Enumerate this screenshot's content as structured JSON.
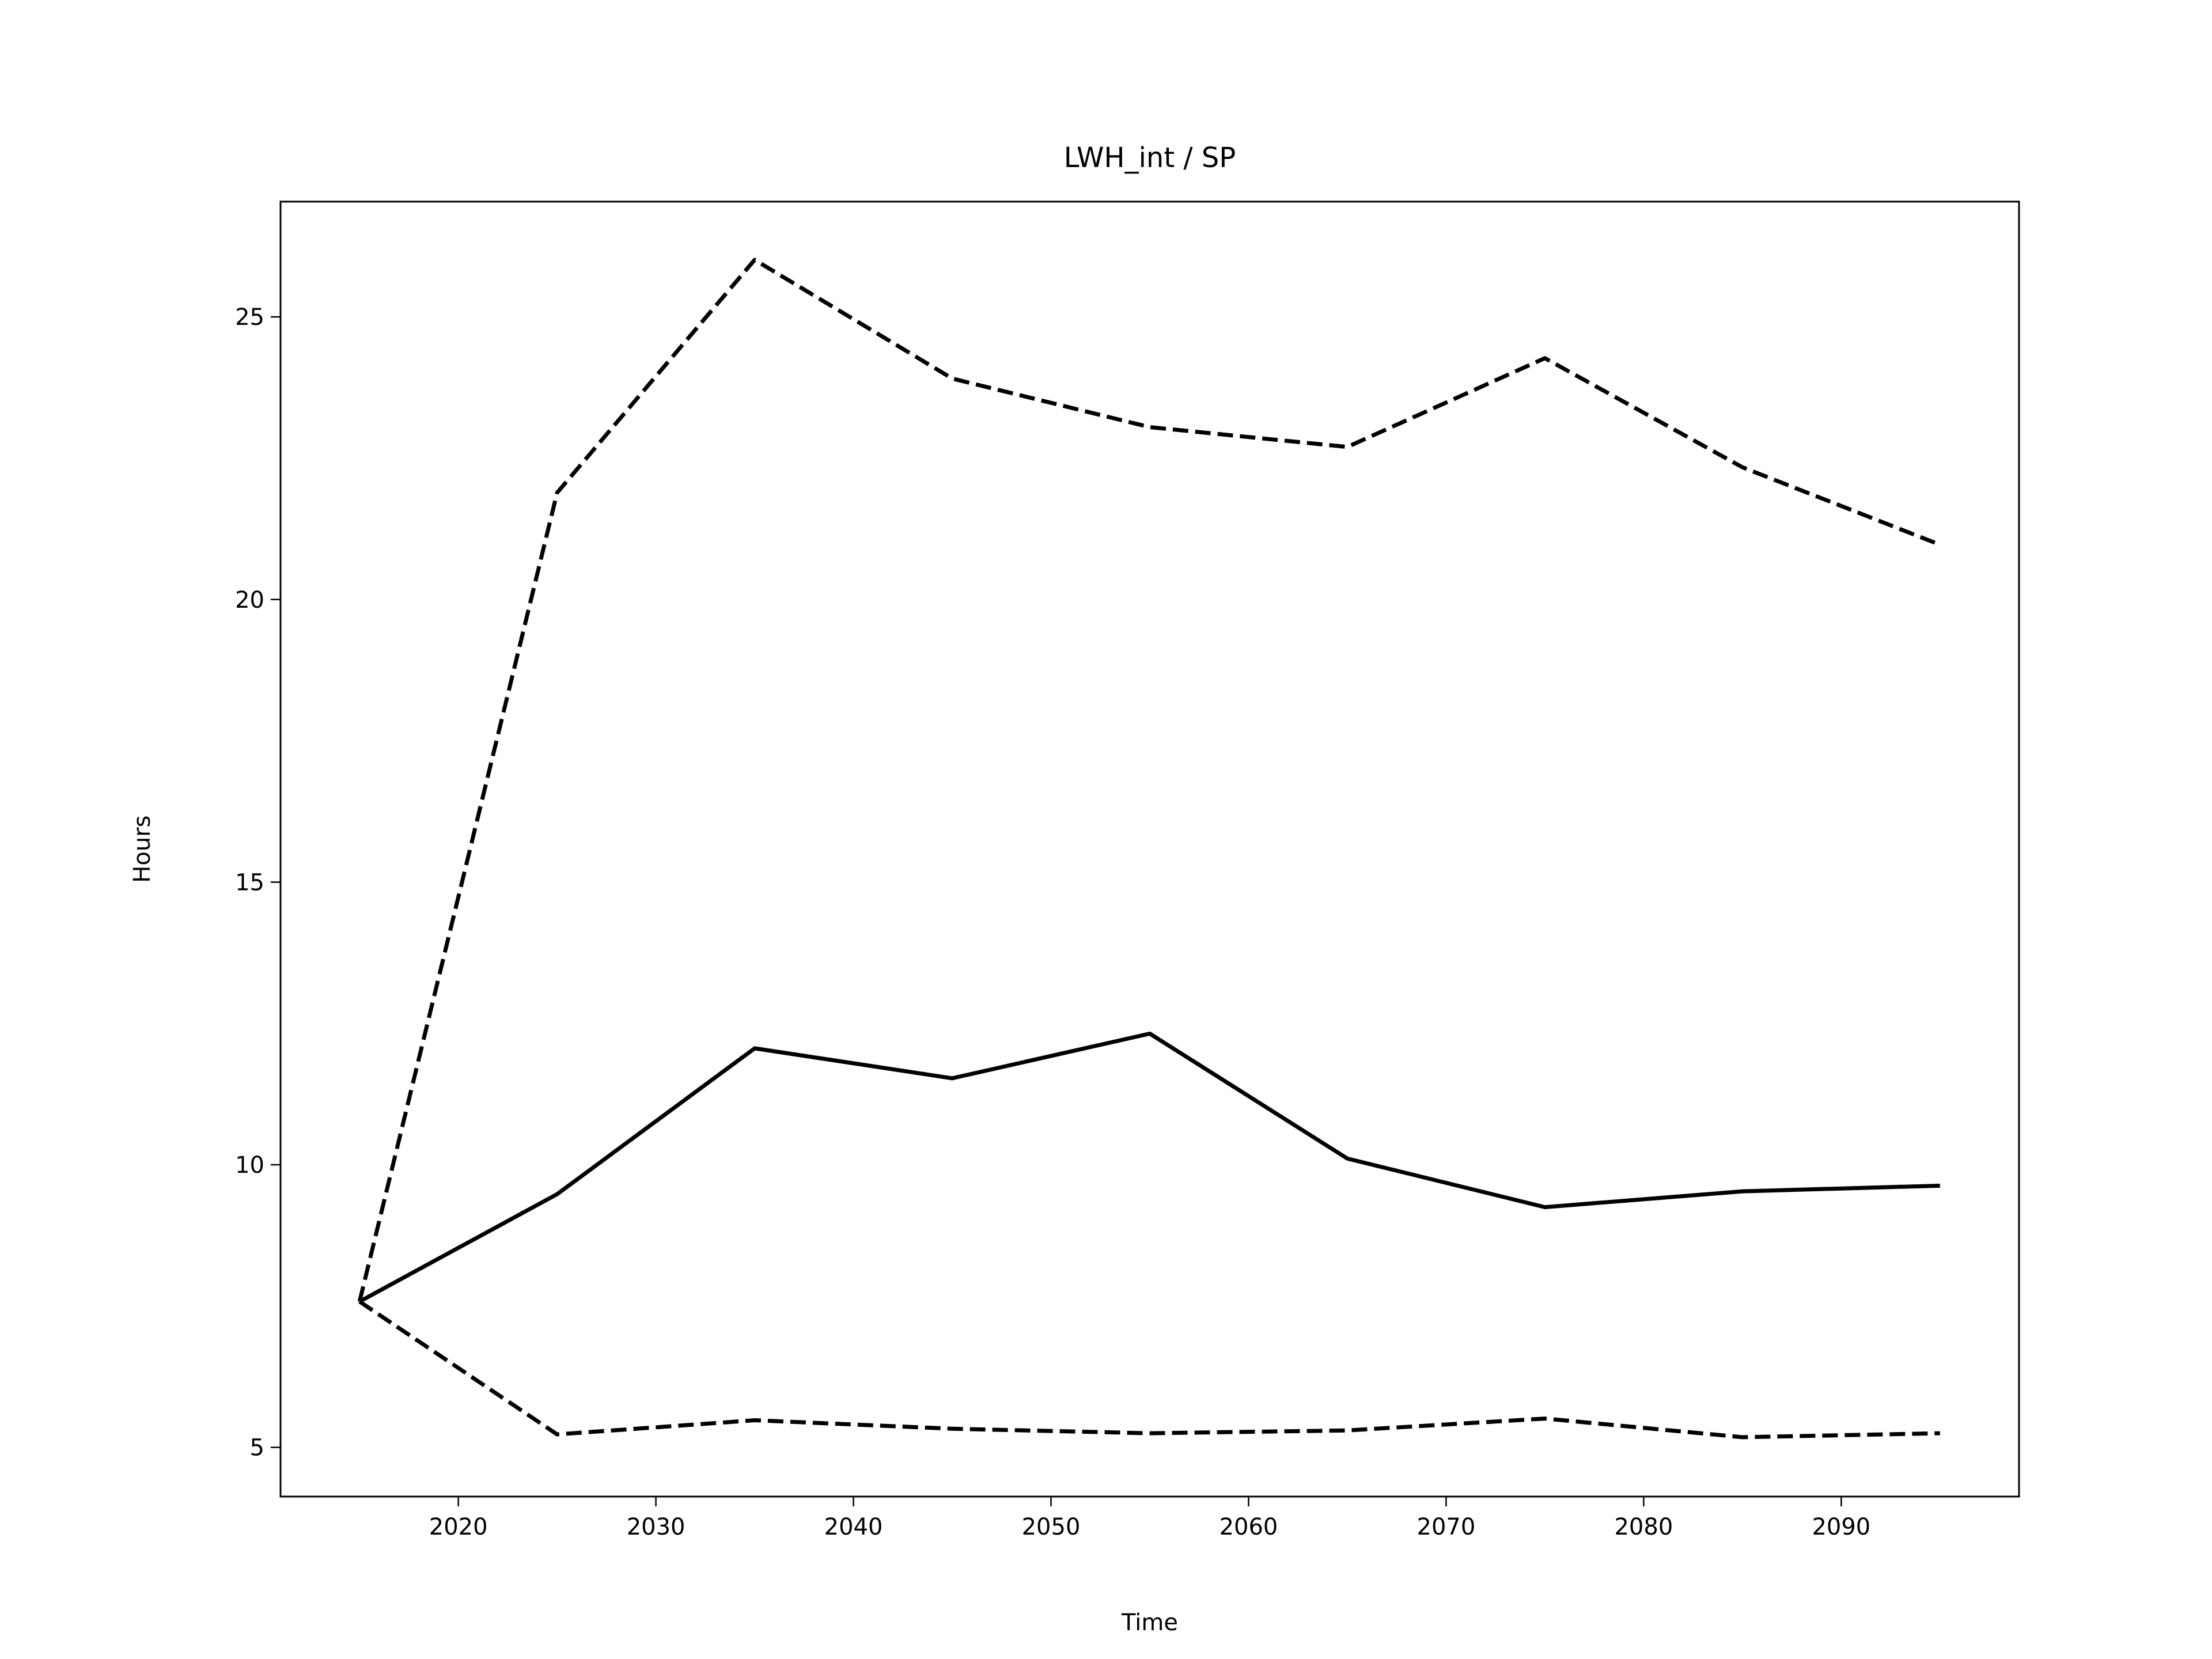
{
  "chart_data": {
    "type": "line",
    "title": "LWH_int / SP",
    "xlabel": "Time",
    "ylabel": "Hours",
    "x": [
      2015,
      2025,
      2035,
      2045,
      2055,
      2065,
      2075,
      2085,
      2095
    ],
    "series": [
      {
        "color": "#000000",
        "linestyle": "solid",
        "values": [
          7.58,
          9.48,
          12.06,
          11.53,
          12.32,
          10.11,
          9.25,
          9.53,
          9.63
        ]
      },
      {
        "color": "#000000",
        "linestyle": "dashed",
        "values": [
          7.58,
          21.89,
          26.01,
          23.91,
          23.05,
          22.7,
          24.27,
          22.34,
          20.97
        ]
      },
      {
        "color": "#000000",
        "linestyle": "dashed",
        "values": [
          7.58,
          5.23,
          5.48,
          5.33,
          5.25,
          5.3,
          5.51,
          5.18,
          5.25
        ]
      }
    ],
    "xlim": [
      2011,
      2099
    ],
    "xticks": [
      2020,
      2030,
      2040,
      2050,
      2060,
      2070,
      2080,
      2090
    ],
    "ylim": [
      4.13,
      27.04
    ],
    "yticks": [
      5,
      10,
      15,
      20,
      25
    ],
    "grid": false
  }
}
